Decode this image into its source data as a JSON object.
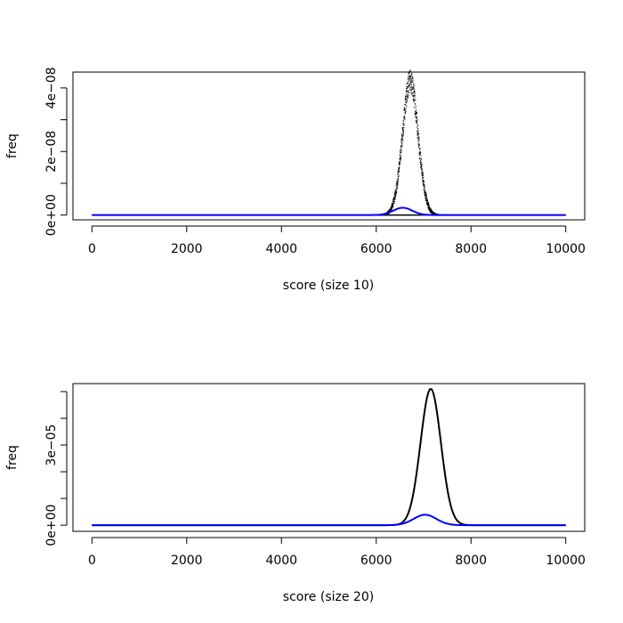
{
  "chart_data": [
    {
      "type": "line",
      "title": "",
      "xlabel": "score (size 10)",
      "ylabel": "freq",
      "xlim": [
        -400,
        10400
      ],
      "ylim": [
        -1.5e-09,
        4.5e-08
      ],
      "x_ticks": [
        0,
        2000,
        4000,
        6000,
        8000,
        10000
      ],
      "x_tick_labels": [
        "0",
        "2000",
        "4000",
        "6000",
        "8000",
        "10000"
      ],
      "y_ticks": [
        0,
        1e-08,
        2e-08,
        3e-08,
        4e-08
      ],
      "y_tick_labels": [
        "0e+00",
        "",
        "2e−08",
        "",
        "4e−08"
      ],
      "grid": false,
      "series": [
        {
          "color": "#000000",
          "style": "noisy-points",
          "peak_x": 6720,
          "peak_y": 4.2e-08,
          "sigma": 165,
          "x_range": [
            0,
            10000
          ]
        },
        {
          "color": "#0000ff",
          "style": "line",
          "peak_x": 6560,
          "peak_y": 2.3e-09,
          "sigma": 200,
          "x_range": [
            0,
            10000
          ]
        }
      ]
    },
    {
      "type": "line",
      "title": "",
      "xlabel": "score (size 20)",
      "ylabel": "freq",
      "xlim": [
        -400,
        10400
      ],
      "ylim": [
        -2.3e-06,
        5.3e-05
      ],
      "x_ticks": [
        0,
        2000,
        4000,
        6000,
        8000,
        10000
      ],
      "x_tick_labels": [
        "0",
        "2000",
        "4000",
        "6000",
        "8000",
        "10000"
      ],
      "y_ticks": [
        0,
        1e-05,
        2e-05,
        3e-05,
        4e-05,
        5e-05
      ],
      "y_tick_labels": [
        "0e+00",
        "",
        "",
        "3e−05",
        "",
        ""
      ],
      "grid": false,
      "series": [
        {
          "color": "#000000",
          "style": "line",
          "peak_x": 7150,
          "peak_y": 5.1e-05,
          "sigma": 215,
          "x_range": [
            0,
            10000
          ]
        },
        {
          "color": "#0000ff",
          "style": "line",
          "peak_x": 7030,
          "peak_y": 3.9e-06,
          "sigma": 240,
          "x_range": [
            0,
            10000
          ]
        }
      ]
    }
  ]
}
